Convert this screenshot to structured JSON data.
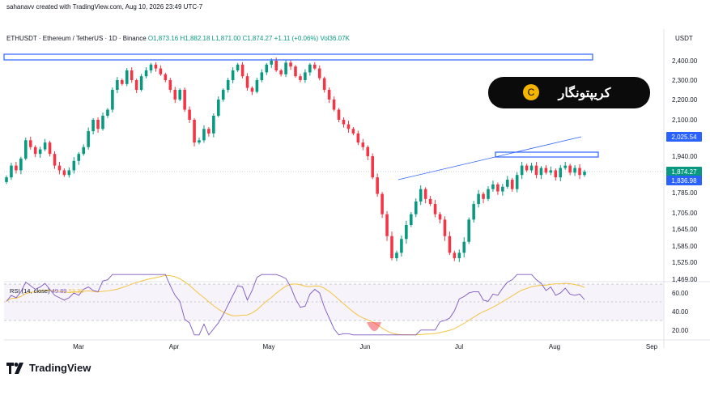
{
  "header": {
    "author_line": "sahanavv created with TradingView.com, Aug 10, 2026 23:49 UTC-7",
    "symbol": "ETHUSDT · Ethereum / TetherUS · 1D · Binance",
    "open": "O1,873.16",
    "high": "H1,882.18",
    "low": "L1,871.00",
    "close": "C1,874.27",
    "change": "+1.11 (+0.06%)",
    "volume": "Vol36.07K",
    "unit": "USDT"
  },
  "badge": {
    "text": "کریپتونگار",
    "logo_letter": "C"
  },
  "price_labels": {
    "p1": "2,025.54",
    "p2": "1,874.27",
    "p3": "1,836.98"
  },
  "rsi": {
    "title": "RSI (14, close)",
    "rsi_value": "49.89",
    "ma_value": "53.39",
    "ticks": [
      "60.00",
      "40.00",
      "20.00"
    ]
  },
  "footer": {
    "brand": "TradingView"
  },
  "colors": {
    "up": "#089981",
    "down": "#f23645",
    "rsi": "#7e57c2",
    "rsi_ma": "#f4c542",
    "box": "#2962ff"
  },
  "chart_data": {
    "type": "candlestick",
    "title": "ETHUSDT · Ethereum / TetherUS · 1D · Binance",
    "ylim": [
      1469,
      2460
    ],
    "y_ticks": [
      "2,400.00",
      "2,300.00",
      "2,200.00",
      "2,100.00",
      "1,940.00",
      "1,785.00",
      "1,705.00",
      "1,645.00",
      "1,585.00",
      "1,525.00",
      "1,469.00"
    ],
    "x_ticks": [
      "Mar",
      "Apr",
      "May",
      "Jun",
      "Jul",
      "Aug",
      "Sep"
    ],
    "close_series": [
      1850,
      1900,
      1880,
      1930,
      2010,
      1980,
      1950,
      1970,
      2000,
      1950,
      1900,
      1880,
      1860,
      1880,
      1920,
      1950,
      1980,
      2050,
      2100,
      2060,
      2120,
      2150,
      2250,
      2300,
      2280,
      2350,
      2300,
      2250,
      2320,
      2350,
      2380,
      2360,
      2330,
      2300,
      2250,
      2200,
      2250,
      2150,
      2100,
      2000,
      2010,
      2060,
      2040,
      2120,
      2200,
      2250,
      2300,
      2350,
      2380,
      2320,
      2260,
      2240,
      2300,
      2340,
      2380,
      2400,
      2350,
      2330,
      2390,
      2370,
      2320,
      2300,
      2340,
      2380,
      2360,
      2310,
      2250,
      2200,
      2150,
      2100,
      2080,
      2060,
      2040,
      2000,
      1980,
      1940,
      1850,
      1780,
      1700,
      1620,
      1540,
      1560,
      1610,
      1660,
      1700,
      1750,
      1800,
      1760,
      1740,
      1700,
      1680,
      1620,
      1560,
      1540,
      1560,
      1600,
      1680,
      1740,
      1780,
      1760,
      1800,
      1820,
      1790,
      1810,
      1840,
      1800,
      1860,
      1900,
      1880,
      1900,
      1860,
      1890,
      1870,
      1880,
      1850,
      1890,
      1900,
      1870,
      1890,
      1860,
      1874
    ]
  }
}
